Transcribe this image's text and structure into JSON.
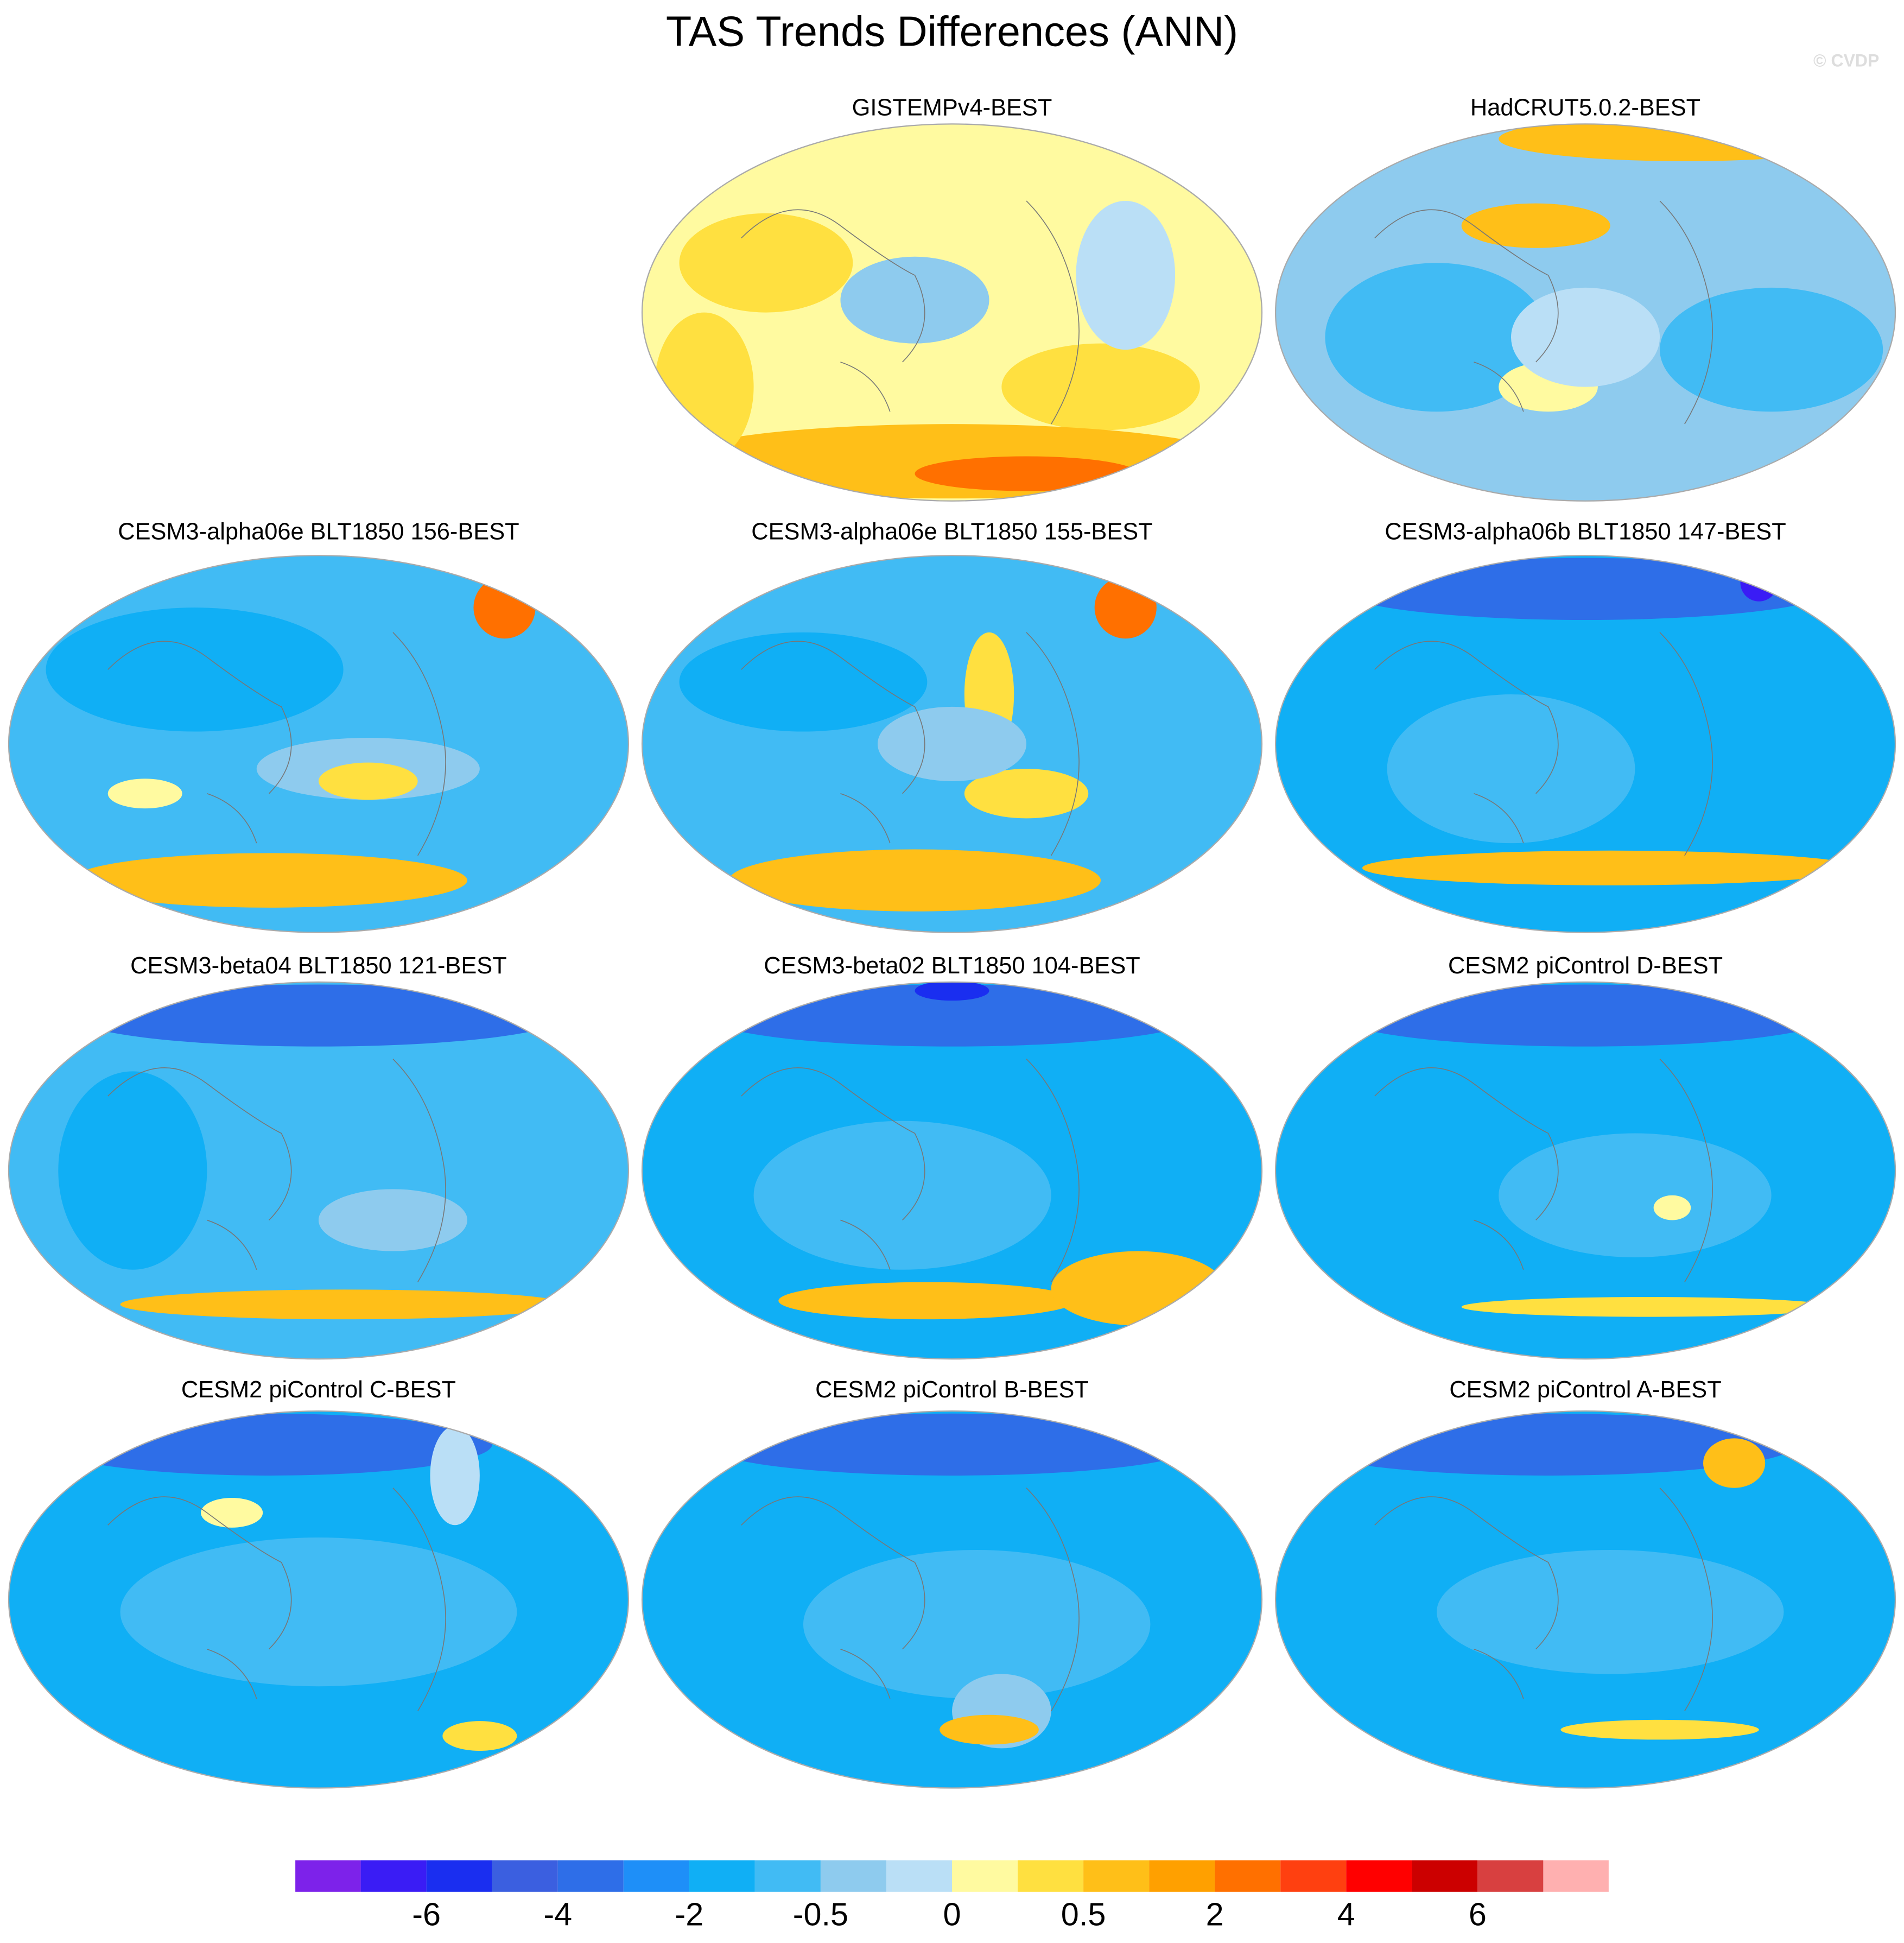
{
  "title": "TAS Trends Differences (ANN)",
  "watermark": "© CVDP",
  "panels": [
    {
      "title": "GISTEMPv4-BEST"
    },
    {
      "title": "HadCRUT5.0.2-BEST"
    },
    {
      "title": "CESM3-alpha06e BLT1850 156-BEST"
    },
    {
      "title": "CESM3-alpha06e BLT1850 155-BEST"
    },
    {
      "title": "CESM3-alpha06b BLT1850 147-BEST"
    },
    {
      "title": "CESM3-beta04 BLT1850 121-BEST"
    },
    {
      "title": "CESM3-beta02 BLT1850 104-BEST"
    },
    {
      "title": "CESM2 piControl D-BEST"
    },
    {
      "title": "CESM2 piControl C-BEST"
    },
    {
      "title": "CESM2 piControl B-BEST"
    },
    {
      "title": "CESM2 piControl A-BEST"
    }
  ],
  "colorbar": {
    "colors": [
      "#7d22ea",
      "#3a1cf5",
      "#1a2ef0",
      "#3b5fe0",
      "#2e6ee8",
      "#1e8ff8",
      "#10aff5",
      "#41bbf4",
      "#8ecbee",
      "#badff6",
      "#fffaa0",
      "#ffe040",
      "#ffbf18",
      "#ffa000",
      "#ff7000",
      "#ff4010",
      "#ff0000",
      "#cc0000",
      "#d84040",
      "#ffb0b0"
    ],
    "labels": [
      "-6",
      "-4",
      "-2",
      "-0.5",
      "0",
      "0.5",
      "2",
      "4",
      "6"
    ]
  }
}
